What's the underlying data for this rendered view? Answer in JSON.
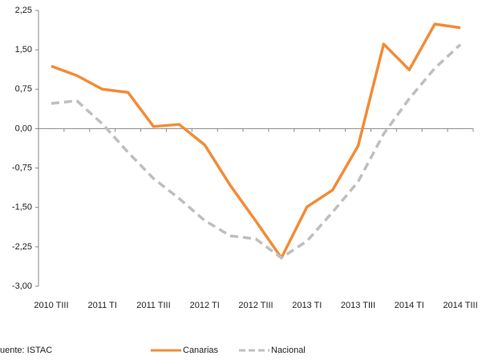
{
  "chart_data": {
    "type": "line",
    "categories": [
      "2010 TIII",
      null,
      "2011 TI",
      null,
      "2011 TIII",
      null,
      "2012 TI",
      null,
      "2012 TIII",
      null,
      "2013 TI",
      null,
      "2013 TIII",
      null,
      "2014 TI",
      null,
      "2014 TIII"
    ],
    "series": [
      {
        "name": "Canarias",
        "color": "#f28c38",
        "dash": false,
        "values": [
          1.19,
          1.01,
          0.75,
          0.69,
          0.04,
          0.08,
          -0.31,
          -1.08,
          -1.76,
          -2.46,
          -1.49,
          -1.17,
          -0.33,
          1.61,
          1.12,
          1.99,
          1.92
        ]
      },
      {
        "name": "Nacional",
        "color": "#bfbfbf",
        "dash": true,
        "values": [
          0.48,
          0.53,
          0.09,
          -0.45,
          -0.95,
          -1.33,
          -1.75,
          -2.04,
          -2.1,
          -2.46,
          -2.14,
          -1.59,
          -1.01,
          -0.1,
          0.57,
          1.15,
          1.6
        ]
      }
    ],
    "ylim": [
      -3,
      2.25
    ],
    "yticks": [
      {
        "value": -3,
        "label": "-3,00"
      },
      {
        "value": -2.25,
        "label": "-2,25"
      },
      {
        "value": -1.5,
        "label": "-1,50"
      },
      {
        "value": -0.75,
        "label": "-0,75"
      },
      {
        "value": 0,
        "label": "0,00"
      },
      {
        "value": 0.75,
        "label": "0,75"
      },
      {
        "value": 1.5,
        "label": "1,50"
      },
      {
        "value": 2.25,
        "label": "2,25"
      }
    ],
    "source": "uente: ISTAC",
    "legend": "bottom"
  }
}
